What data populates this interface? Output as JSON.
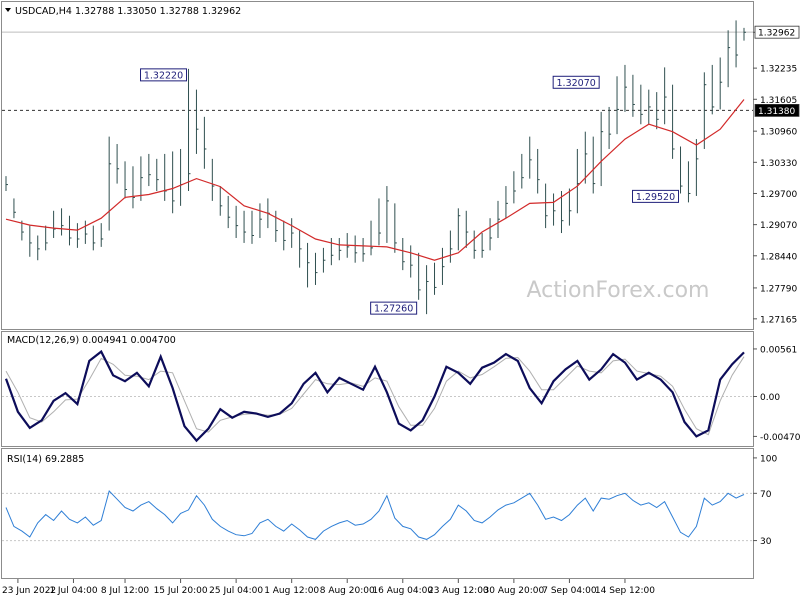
{
  "chart_data": [
    {
      "panel": "price",
      "type": "line",
      "title": "USDCAD,H4  1.32788 1.33050 1.32788 1.32962",
      "ylim": [
        1.2702,
        1.3337
      ],
      "y_ticks": [
        "1.32960",
        "1.32235",
        "1.31605",
        "1.30960",
        "1.30330",
        "1.29700",
        "1.29070",
        "1.28440",
        "1.27790",
        "1.27165"
      ],
      "last_price_label": "1.32962",
      "hline": {
        "value": 1.3138,
        "label": "1.31380"
      },
      "watermark": "ActionForex.com",
      "annotations": [
        {
          "label": "1.32220",
          "x": 46,
          "y": 1.3222
        },
        {
          "label": "1.27260",
          "x": 104,
          "y": 1.2726
        },
        {
          "label": "1.32070",
          "x": 150,
          "y": 1.3207
        },
        {
          "label": "1.29520",
          "x": 170,
          "y": 1.2952
        }
      ],
      "series": [
        {
          "type": "bars",
          "color": "#2f4f4f",
          "x": [
            0,
            2,
            4,
            6,
            8,
            10,
            12,
            14,
            16,
            18,
            20,
            22,
            24,
            26,
            28,
            30,
            32,
            34,
            36,
            38,
            40,
            42,
            44,
            46,
            48,
            50,
            52,
            54,
            56,
            58,
            60,
            62,
            64,
            66,
            68,
            70,
            72,
            74,
            76,
            78,
            80,
            82,
            84,
            86,
            88,
            90,
            92,
            94,
            96,
            98,
            100,
            102,
            104,
            106,
            108,
            110,
            112,
            114,
            116,
            118,
            120,
            122,
            124,
            126,
            128,
            130,
            132,
            134,
            136,
            138,
            140,
            142,
            144,
            146,
            148,
            150,
            152,
            154,
            156,
            158,
            160,
            162,
            164,
            166,
            168,
            170,
            172,
            174,
            176,
            178,
            180,
            182,
            184,
            186
          ],
          "close": [
            1.2988,
            1.2932,
            1.2892,
            1.287,
            1.2858,
            1.287,
            1.2898,
            1.2905,
            1.288,
            1.2878,
            1.2888,
            1.287,
            1.2878,
            1.303,
            1.302,
            1.2978,
            1.2962,
            1.3002,
            1.3008,
            1.2998,
            1.2975,
            1.2955,
            1.2988,
            1.301,
            1.31,
            1.306,
            1.2985,
            1.2945,
            1.2922,
            1.2905,
            1.2892,
            1.2885,
            1.2918,
            1.293,
            1.2895,
            1.2875,
            1.289,
            1.2858,
            1.283,
            1.281,
            1.2835,
            1.2845,
            1.2855,
            1.2862,
            1.285,
            1.2848,
            1.286,
            1.289,
            1.2955,
            1.287,
            1.2832,
            1.2825,
            1.2775,
            1.2792,
            1.278,
            1.2822,
            1.2858,
            1.2925,
            1.2892,
            1.2855,
            1.2855,
            1.288,
            1.2918,
            1.295,
            1.2975,
            1.3002,
            1.3038,
            1.2998,
            1.2925,
            1.2935,
            1.2915,
            1.2935,
            1.299,
            1.305,
            1.299,
            1.3095,
            1.309,
            1.314,
            1.3185,
            1.315,
            1.313,
            1.3145,
            1.312,
            1.3165,
            1.306,
            1.2985,
            1.297,
            1.304,
            1.319,
            1.3145,
            1.3195,
            1.3265,
            1.325,
            1.3296
          ],
          "high": [
            1.3005,
            1.296,
            1.2915,
            1.2905,
            1.2885,
            1.2905,
            1.2935,
            1.294,
            1.2925,
            1.291,
            1.2915,
            1.2905,
            1.291,
            1.3085,
            1.307,
            1.3035,
            1.3025,
            1.3045,
            1.305,
            1.304,
            1.305,
            1.3055,
            1.306,
            1.3222,
            1.318,
            1.3125,
            1.304,
            1.2985,
            1.2965,
            1.2945,
            1.2935,
            1.2935,
            1.295,
            1.296,
            1.2935,
            1.2915,
            1.292,
            1.2895,
            1.287,
            1.285,
            1.286,
            1.288,
            1.288,
            1.289,
            1.2885,
            1.288,
            1.2915,
            1.296,
            1.2985,
            1.295,
            1.288,
            1.2865,
            1.285,
            1.2825,
            1.283,
            1.286,
            1.2895,
            1.294,
            1.2935,
            1.2895,
            1.289,
            1.292,
            1.2955,
            1.2985,
            1.3015,
            1.305,
            1.3085,
            1.306,
            1.299,
            1.297,
            1.2975,
            1.298,
            1.306,
            1.3095,
            1.3085,
            1.3135,
            1.3145,
            1.3207,
            1.323,
            1.321,
            1.319,
            1.318,
            1.3175,
            1.3225,
            1.319,
            1.3065,
            1.3035,
            1.308,
            1.3215,
            1.323,
            1.3245,
            1.33,
            1.332,
            1.3305
          ],
          "low": [
            1.2975,
            1.292,
            1.2875,
            1.2842,
            1.2835,
            1.2855,
            1.288,
            1.2885,
            1.2865,
            1.286,
            1.2868,
            1.2855,
            1.2862,
            1.2895,
            1.299,
            1.296,
            1.294,
            1.2955,
            1.2985,
            1.2975,
            1.2955,
            1.293,
            1.2945,
            1.2975,
            1.305,
            1.302,
            1.2955,
            1.2925,
            1.29,
            1.288,
            1.287,
            1.2868,
            1.288,
            1.29,
            1.2872,
            1.2855,
            1.286,
            1.282,
            1.278,
            1.2785,
            1.281,
            1.2825,
            1.2835,
            1.284,
            1.283,
            1.2832,
            1.2845,
            1.2865,
            1.287,
            1.285,
            1.2815,
            1.28,
            1.2755,
            1.2726,
            1.2765,
            1.2785,
            1.283,
            1.2855,
            1.286,
            1.2838,
            1.284,
            1.2855,
            1.288,
            1.292,
            1.295,
            1.298,
            1.3,
            1.297,
            1.29,
            1.2905,
            1.289,
            1.2905,
            1.293,
            1.299,
            1.297,
            1.2985,
            1.306,
            1.309,
            1.3135,
            1.3125,
            1.311,
            1.311,
            1.31,
            1.311,
            1.304,
            1.297,
            1.2952,
            1.2965,
            1.306,
            1.313,
            1.314,
            1.3185,
            1.3225,
            1.3279
          ]
        },
        {
          "type": "line",
          "name": "moving average",
          "color": "#d22a2a",
          "x": [
            0,
            6,
            12,
            18,
            24,
            30,
            36,
            42,
            48,
            54,
            60,
            66,
            72,
            78,
            84,
            90,
            96,
            102,
            108,
            114,
            120,
            126,
            132,
            138,
            144,
            150,
            156,
            162,
            168,
            174,
            180,
            186
          ],
          "y": [
            1.2918,
            1.2906,
            1.29,
            1.2896,
            1.292,
            1.2962,
            1.2968,
            1.298,
            1.3,
            1.2984,
            1.2945,
            1.293,
            1.2905,
            1.2878,
            1.2866,
            1.2864,
            1.2862,
            1.285,
            1.2835,
            1.285,
            1.2892,
            1.292,
            1.295,
            1.2952,
            1.2985,
            1.3035,
            1.308,
            1.311,
            1.3095,
            1.3068,
            1.31,
            1.316
          ]
        }
      ]
    },
    {
      "panel": "macd",
      "type": "line",
      "title": "MACD(12,26,9) 0.004941 0.004700",
      "ylim": [
        -0.0056,
        0.0069
      ],
      "y_ticks": [
        "0.00561",
        "0.00",
        "-0.004705"
      ],
      "zero_line": 0,
      "series": [
        {
          "type": "line",
          "name": "MACD",
          "color": "#0d0d5a",
          "x": [
            0,
            3,
            6,
            9,
            12,
            15,
            18,
            21,
            24,
            27,
            30,
            33,
            36,
            39,
            42,
            45,
            48,
            51,
            54,
            57,
            60,
            63,
            66,
            69,
            72,
            75,
            78,
            81,
            84,
            87,
            90,
            93,
            96,
            99,
            102,
            105,
            108,
            111,
            114,
            117,
            120,
            123,
            126,
            129,
            132,
            135,
            138,
            141,
            144,
            147,
            150,
            153,
            156,
            159,
            162,
            165,
            168,
            171,
            174,
            177,
            180,
            183,
            186
          ],
          "y": [
            0.0021,
            -0.0018,
            -0.0037,
            -0.0028,
            -0.0005,
            0.0004,
            -0.0009,
            0.0042,
            0.0053,
            0.0025,
            0.0018,
            0.0028,
            0.0012,
            0.0047,
            0.001,
            -0.0035,
            -0.0052,
            -0.0038,
            -0.0015,
            -0.0025,
            -0.0018,
            -0.002,
            -0.0024,
            -0.002,
            -0.0008,
            0.0015,
            0.0028,
            0.0005,
            0.0022,
            0.0015,
            0.0008,
            0.0035,
            0.0005,
            -0.0032,
            -0.004,
            -0.0028,
            0.0,
            0.0035,
            0.0028,
            0.0015,
            0.0034,
            0.004,
            0.005,
            0.0042,
            0.001,
            -0.0008,
            0.0018,
            0.0032,
            0.0042,
            0.002,
            0.0032,
            0.005,
            0.004,
            0.002,
            0.0028,
            0.002,
            0.0005,
            -0.003,
            -0.0047,
            -0.004,
            0.002,
            0.0038,
            0.0052
          ]
        },
        {
          "type": "line",
          "name": "signal",
          "color": "#b0b0b0",
          "x": [
            0,
            3,
            6,
            9,
            12,
            15,
            18,
            21,
            24,
            27,
            30,
            33,
            36,
            39,
            42,
            45,
            48,
            51,
            54,
            57,
            60,
            63,
            66,
            69,
            72,
            75,
            78,
            81,
            84,
            87,
            90,
            93,
            96,
            99,
            102,
            105,
            108,
            111,
            114,
            117,
            120,
            123,
            126,
            129,
            132,
            135,
            138,
            141,
            144,
            147,
            150,
            153,
            156,
            159,
            162,
            165,
            168,
            171,
            174,
            177,
            180,
            183,
            186
          ],
          "y": [
            0.003,
            0.0005,
            -0.0025,
            -0.003,
            -0.0018,
            -0.0004,
            -0.0003,
            0.002,
            0.0045,
            0.0038,
            0.0025,
            0.0024,
            0.002,
            0.003,
            0.0028,
            -0.0005,
            -0.0038,
            -0.0042,
            -0.0028,
            -0.0024,
            -0.0021,
            -0.002,
            -0.0022,
            -0.0021,
            -0.0014,
            0.0003,
            0.002,
            0.0015,
            0.0014,
            0.0016,
            0.0012,
            0.0022,
            0.0018,
            -0.0012,
            -0.0034,
            -0.0034,
            -0.0014,
            0.0018,
            0.003,
            0.0022,
            0.0026,
            0.0035,
            0.0045,
            0.0046,
            0.003,
            0.0008,
            0.0008,
            0.0022,
            0.0036,
            0.003,
            0.0028,
            0.0042,
            0.0044,
            0.003,
            0.0027,
            0.0024,
            0.0012,
            -0.0015,
            -0.0038,
            -0.0045,
            -0.0005,
            0.0025,
            0.0047
          ]
        }
      ]
    },
    {
      "panel": "rsi",
      "type": "line",
      "title": "RSI(14) 69.2885",
      "ylim": [
        0,
        105
      ],
      "y_ticks": [
        "100",
        "70",
        "30"
      ],
      "levels": [
        70,
        30
      ],
      "series": [
        {
          "type": "line",
          "name": "RSI",
          "color": "#2f7fd6",
          "x": [
            0,
            2,
            4,
            6,
            8,
            10,
            12,
            14,
            16,
            18,
            20,
            22,
            24,
            26,
            28,
            30,
            32,
            34,
            36,
            38,
            40,
            42,
            44,
            46,
            48,
            50,
            52,
            54,
            56,
            58,
            60,
            62,
            64,
            66,
            68,
            70,
            72,
            74,
            76,
            78,
            80,
            82,
            84,
            86,
            88,
            90,
            92,
            94,
            96,
            98,
            100,
            102,
            104,
            106,
            108,
            110,
            112,
            114,
            116,
            118,
            120,
            122,
            124,
            126,
            128,
            130,
            132,
            134,
            136,
            138,
            140,
            142,
            144,
            146,
            148,
            150,
            152,
            154,
            156,
            158,
            160,
            162,
            164,
            166,
            168,
            170,
            172,
            174,
            176,
            178,
            180,
            182,
            184,
            186
          ],
          "y": [
            58,
            42,
            38,
            33,
            45,
            52,
            47,
            55,
            48,
            45,
            50,
            43,
            47,
            72,
            65,
            58,
            55,
            60,
            63,
            57,
            52,
            45,
            53,
            56,
            68,
            60,
            48,
            42,
            38,
            35,
            34,
            36,
            45,
            48,
            42,
            38,
            44,
            39,
            33,
            31,
            38,
            42,
            45,
            47,
            43,
            44,
            48,
            55,
            68,
            49,
            42,
            40,
            33,
            31,
            35,
            42,
            48,
            60,
            55,
            47,
            45,
            50,
            56,
            60,
            62,
            66,
            70,
            60,
            48,
            50,
            47,
            52,
            60,
            66,
            55,
            66,
            65,
            68,
            70,
            64,
            60,
            62,
            58,
            63,
            50,
            37,
            33,
            42,
            66,
            60,
            63,
            70,
            66,
            69
          ]
        }
      ]
    },
    {
      "panel": "time_axis",
      "type": "axis",
      "x_ticks": [
        {
          "x": 3,
          "label": "23 Jun 2022"
        },
        {
          "x": 17,
          "label": "1 Jul 04:00"
        },
        {
          "x": 30,
          "label": "8 Jul 12:00"
        },
        {
          "x": 44,
          "label": "15 Jul 20:00"
        },
        {
          "x": 58,
          "label": "25 Jul 04:00"
        },
        {
          "x": 72,
          "label": "1 Aug 12:00"
        },
        {
          "x": 86,
          "label": "8 Aug 20:00"
        },
        {
          "x": 100,
          "label": "16 Aug 04:00"
        },
        {
          "x": 114,
          "label": "23 Aug 12:00"
        },
        {
          "x": 128,
          "label": "30 Aug 20:00"
        },
        {
          "x": 142,
          "label": "7 Sep 04:00"
        },
        {
          "x": 156,
          "label": "14 Sep 12:00"
        }
      ]
    }
  ]
}
